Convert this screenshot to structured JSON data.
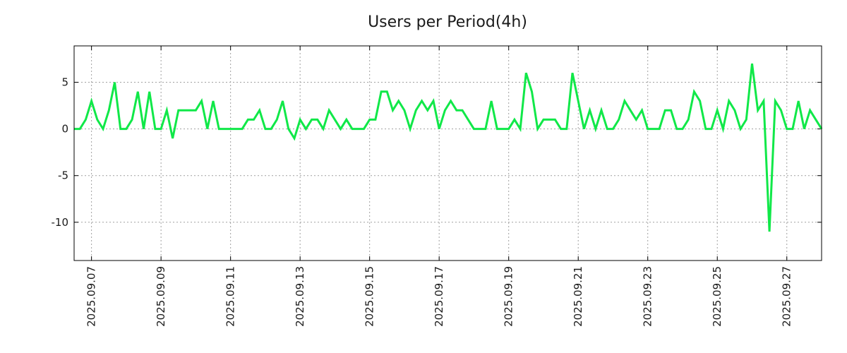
{
  "chart_data": {
    "type": "line",
    "title": "Users per Period(4h)",
    "xlabel": "",
    "ylabel": "",
    "ylim": [
      -14.1,
      8.9
    ],
    "xlim": [
      0,
      129
    ],
    "grid": true,
    "yticks": [
      5,
      0,
      -5,
      -10
    ],
    "xtick_positions": [
      3,
      15,
      27,
      39,
      51,
      63,
      75,
      87,
      99,
      111,
      123
    ],
    "xtick_labels": [
      "2025.09.07",
      "2025.09.09",
      "2025.09.11",
      "2025.09.13",
      "2025.09.15",
      "2025.09.17",
      "2025.09.19",
      "2025.09.21",
      "2025.09.23",
      "2025.09.25",
      "2025.09.27"
    ],
    "series": [
      {
        "name": "Users",
        "color": "#10e848",
        "values": [
          0,
          0,
          1,
          3,
          1,
          0,
          2,
          5,
          0,
          0,
          1,
          4,
          0,
          4,
          0,
          0,
          2,
          -1,
          2,
          2,
          2,
          2,
          3,
          0,
          3,
          0,
          0,
          0,
          0,
          0,
          1,
          1,
          2,
          0,
          0,
          1,
          3,
          0,
          -1,
          1,
          0,
          1,
          1,
          0,
          2,
          1,
          0,
          1,
          0,
          0,
          0,
          1,
          1,
          4,
          4,
          2,
          3,
          2,
          0,
          2,
          3,
          2,
          3,
          0,
          2,
          3,
          2,
          2,
          1,
          0,
          0,
          0,
          3,
          0,
          0,
          0,
          1,
          0,
          6,
          4,
          0,
          1,
          1,
          1,
          0,
          0,
          6,
          3,
          0,
          2,
          0,
          2,
          0,
          0,
          1,
          3,
          2,
          1,
          2,
          0,
          0,
          0,
          2,
          2,
          0,
          0,
          1,
          4,
          3,
          0,
          0,
          2,
          0,
          3,
          2,
          0,
          1,
          7,
          2,
          3,
          -11,
          3,
          2,
          0,
          0,
          3,
          0,
          2,
          1,
          0
        ]
      }
    ]
  }
}
